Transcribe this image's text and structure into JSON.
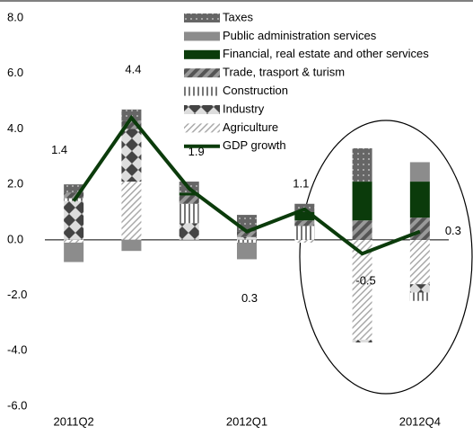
{
  "chart_data": {
    "type": "stacked-bar-line",
    "categories": [
      "2011Q2",
      null,
      null,
      "2012Q1",
      null,
      null,
      "2012Q4"
    ],
    "series": [
      {
        "name": "Taxes",
        "color": "#666666",
        "values": [
          0.3,
          0.4,
          0.4,
          0.6,
          0.3,
          1.2,
          0
        ]
      },
      {
        "name": "Public administration services",
        "color": "#8c8c8c",
        "values": [
          -0.7,
          -0.4,
          0,
          -0.6,
          0,
          0,
          0.7
        ]
      },
      {
        "name": "Financial, real estate and other services",
        "color": "#0b3b0b",
        "values": [
          0,
          0,
          0.1,
          0,
          0.3,
          1.4,
          1.3
        ]
      },
      {
        "name": "Trade, trasport & turism",
        "color": "#777777",
        "values": [
          0.2,
          0.3,
          0.3,
          0.2,
          0.2,
          0.7,
          0.8
        ]
      },
      {
        "name": "Construction",
        "color": "#999999",
        "values": [
          0.1,
          0,
          0.7,
          -0.1,
          0.5,
          0,
          -0.3
        ]
      },
      {
        "name": "Industry",
        "color": "#555555",
        "values": [
          1.4,
          1.9,
          0.6,
          0.1,
          0,
          -0.1,
          -0.3
        ]
      },
      {
        "name": "Agriculture",
        "color": "#bbbbbb",
        "values": [
          -0.1,
          2.1,
          0,
          0,
          -0.1,
          -3.6,
          -1.6
        ]
      },
      {
        "name": "GDP growth",
        "color": "#0b3b0b",
        "type": "line",
        "values": [
          1.4,
          4.4,
          1.85,
          0.3,
          1.1,
          -0.5,
          0.3
        ],
        "value_labels": [
          "1.4",
          "4.4",
          "1.9",
          "0.3",
          "1.1",
          "-0.5",
          "0.3"
        ]
      }
    ],
    "ylim": [
      -6,
      8
    ],
    "yticks": [
      {
        "value": -6,
        "label": "-6.0"
      },
      {
        "value": -4,
        "label": "-4.0"
      },
      {
        "value": -2,
        "label": "-2.0"
      },
      {
        "value": 0,
        "label": "0.0"
      },
      {
        "value": 2,
        "label": "2.0"
      },
      {
        "value": 4,
        "label": "4.0"
      },
      {
        "value": 6,
        "label": "6.0"
      },
      {
        "value": 8,
        "label": "8.0"
      }
    ]
  }
}
